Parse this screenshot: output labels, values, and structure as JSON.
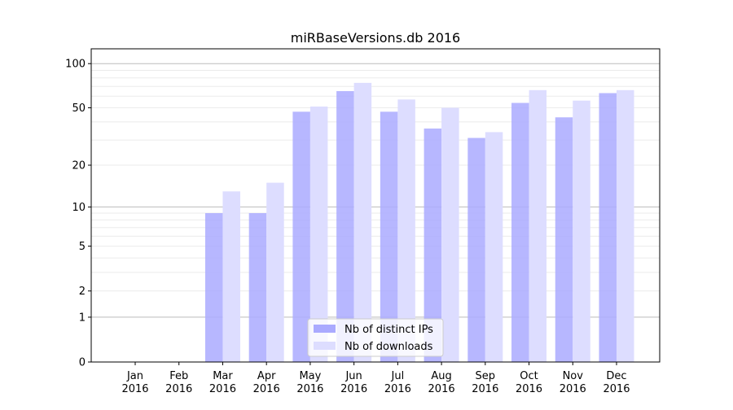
{
  "chart_data": {
    "type": "bar",
    "title": "miRBaseVersions.db 2016",
    "xlabel": "",
    "ylabel": "",
    "yscale": "log(x+1)",
    "ylim": [
      0,
      126
    ],
    "yticks": [
      0,
      1,
      2,
      5,
      10,
      20,
      50,
      100
    ],
    "grid": true,
    "legend_position": "lower-center",
    "categories": [
      "Jan\n2016",
      "Feb\n2016",
      "Mar\n2016",
      "Apr\n2016",
      "May\n2016",
      "Jun\n2016",
      "Jul\n2016",
      "Aug\n2016",
      "Sep\n2016",
      "Oct\n2016",
      "Nov\n2016",
      "Dec\n2016"
    ],
    "series": [
      {
        "name": "Nb of distinct IPs",
        "color": "#aaaaff",
        "values": [
          0,
          0,
          9,
          9,
          47,
          65,
          47,
          36,
          31,
          54,
          43,
          63
        ]
      },
      {
        "name": "Nb of downloads",
        "color": "#ddddff",
        "values": [
          0,
          0,
          13,
          15,
          51,
          74,
          57,
          50,
          34,
          66,
          56,
          66
        ]
      }
    ]
  }
}
